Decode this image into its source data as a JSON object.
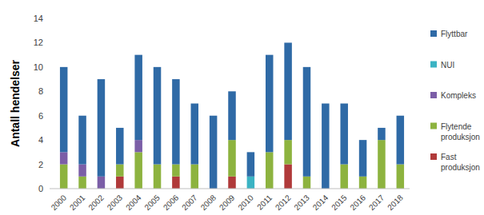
{
  "chart_data": {
    "type": "bar",
    "stacked": true,
    "grid": false,
    "legend": "right",
    "y_label": "Antall hendelser",
    "categories": [
      "2000",
      "2001",
      "2002",
      "2003",
      "2004",
      "2005",
      "2006",
      "2007",
      "2008",
      "2009",
      "2010",
      "2011",
      "2012",
      "2013",
      "2014",
      "2015",
      "2016",
      "2017",
      "2018"
    ],
    "ylim": [
      0,
      14
    ],
    "yticks": [
      0,
      2,
      4,
      6,
      8,
      10,
      12,
      14
    ],
    "series": [
      {
        "name": "Fast produksjon",
        "color": "#b03a3a",
        "values": [
          0,
          0,
          0,
          1,
          0,
          0,
          1,
          0,
          0,
          1,
          0,
          0,
          2,
          0,
          0,
          0,
          0,
          0,
          0
        ]
      },
      {
        "name": "Flytende produksjon",
        "color": "#8db33f",
        "values": [
          2,
          1,
          0,
          1,
          3,
          2,
          1,
          2,
          0,
          3,
          0,
          3,
          2,
          1,
          0,
          2,
          1,
          4,
          2
        ]
      },
      {
        "name": "Kompleks",
        "color": "#7b5ea7",
        "values": [
          1,
          1,
          1,
          0,
          1,
          0,
          0,
          0,
          0,
          0,
          0,
          0,
          0,
          0,
          0,
          0,
          0,
          0,
          0
        ]
      },
      {
        "name": "NUI",
        "color": "#3bb3c3",
        "values": [
          0,
          0,
          0,
          0,
          0,
          0,
          0,
          0,
          0,
          0,
          1,
          0,
          0,
          0,
          0,
          0,
          0,
          0,
          0
        ]
      },
      {
        "name": "Flyttbar",
        "color": "#2f6aa6",
        "values": [
          7,
          4,
          8,
          3,
          7,
          8,
          7,
          5,
          6,
          4,
          2,
          8,
          8,
          9,
          7,
          5,
          3,
          1,
          4
        ]
      }
    ]
  }
}
